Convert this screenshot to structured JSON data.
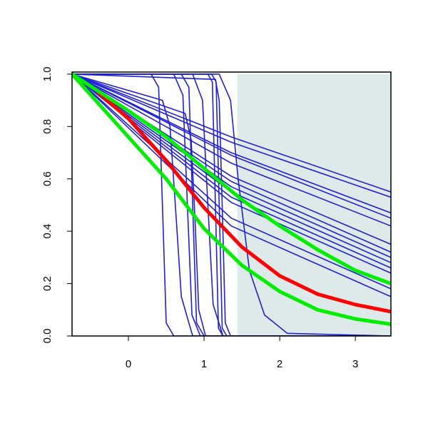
{
  "chart_data": {
    "type": "line",
    "xlim": [
      -0.745,
      3.47
    ],
    "ylim": [
      0,
      1.008
    ],
    "xticks": [
      0,
      1,
      2,
      3
    ],
    "yticks": [
      {
        "value": 0,
        "label": "0.0"
      },
      0.2,
      0.4,
      0.6,
      0.8,
      {
        "value": 1,
        "label": "1.0"
      }
    ],
    "band": {
      "x": [
        1.44,
        3.47
      ],
      "y": [
        0,
        1
      ],
      "color": "#deeaea"
    },
    "series": [
      {
        "color": "#1f1fd8",
        "lwd": 1.6,
        "x": [
          -0.745,
          1.36,
          3.47
        ],
        "values": [
          1,
          0.76,
          0.55
        ]
      },
      {
        "color": "#1f1fd8",
        "lwd": 1.6,
        "x": [
          -0.745,
          1.36,
          3.47
        ],
        "values": [
          1,
          0.74,
          0.53
        ]
      },
      {
        "color": "#1f1fd8",
        "lwd": 1.6,
        "x": [
          -0.745,
          1.36,
          3.47
        ],
        "values": [
          1,
          0.7,
          0.47
        ]
      },
      {
        "color": "#1f1fd8",
        "lwd": 1.6,
        "x": [
          -0.745,
          1.36,
          3.47
        ],
        "values": [
          1,
          0.69,
          0.45
        ]
      },
      {
        "color": "#1f1fd8",
        "lwd": 1.6,
        "x": [
          -0.745,
          1.36,
          3.47
        ],
        "values": [
          1,
          0.66,
          0.42
        ]
      },
      {
        "color": "#1f1fd8",
        "lwd": 1.6,
        "x": [
          -0.745,
          1.36,
          3.47
        ],
        "values": [
          1,
          0.61,
          0.35
        ]
      },
      {
        "color": "#1f1fd8",
        "lwd": 1.6,
        "x": [
          -0.745,
          1.36,
          3.47
        ],
        "values": [
          1,
          0.59,
          0.32
        ]
      },
      {
        "color": "#1f1fd8",
        "lwd": 1.6,
        "x": [
          -0.745,
          1.36,
          3.47
        ],
        "values": [
          1,
          0.57,
          0.3
        ]
      },
      {
        "color": "#1f1fd8",
        "lwd": 1.6,
        "x": [
          -0.745,
          1.36,
          3.47
        ],
        "values": [
          1,
          0.55,
          0.28
        ]
      },
      {
        "color": "#1f1fd8",
        "lwd": 1.6,
        "x": [
          -0.745,
          1.36,
          3.47
        ],
        "values": [
          1,
          0.53,
          0.26
        ]
      },
      {
        "color": "#1f1fd8",
        "lwd": 1.6,
        "x": [
          -0.745,
          1.36,
          3.47
        ],
        "values": [
          1,
          0.51,
          0.24
        ]
      },
      {
        "color": "#1f1fd8",
        "lwd": 1.6,
        "x": [
          -0.745,
          1.36,
          3.47
        ],
        "values": [
          1,
          0.45,
          0.18
        ]
      },
      {
        "color": "#1f1fd8",
        "lwd": 1.6,
        "x": [
          -0.745,
          1.36,
          3.47
        ],
        "values": [
          1,
          0.42,
          0.15
        ]
      },
      {
        "color": "#1f1fd8",
        "lwd": 1.6,
        "x": [
          -0.745,
          0.3,
          0.4,
          0.45,
          0.5,
          0.6,
          3.47
        ],
        "values": [
          1,
          1,
          0.95,
          0.5,
          0.05,
          0,
          0
        ]
      },
      {
        "color": "#1f1fd8",
        "lwd": 1.6,
        "x": [
          -0.745,
          0.45,
          0.55,
          0.62,
          0.7,
          0.85,
          3.47
        ],
        "values": [
          1,
          0.9,
          0.8,
          0.5,
          0.15,
          0,
          0
        ]
      },
      {
        "color": "#1f1fd8",
        "lwd": 1.6,
        "x": [
          -0.745,
          0.6,
          0.72,
          0.78,
          0.84,
          0.95,
          3.47
        ],
        "values": [
          1,
          1,
          0.92,
          0.5,
          0.08,
          0,
          0
        ]
      },
      {
        "color": "#1f1fd8",
        "lwd": 1.6,
        "x": [
          -0.745,
          0.7,
          0.8,
          0.85,
          0.9,
          1.0,
          3.47
        ],
        "values": [
          1,
          1,
          0.95,
          0.5,
          0.05,
          0,
          0
        ]
      },
      {
        "color": "#1f1fd8",
        "lwd": 1.6,
        "x": [
          -0.745,
          0.75,
          0.83,
          0.88,
          0.93,
          1.02,
          3.47
        ],
        "values": [
          1,
          0.85,
          0.75,
          0.45,
          0.1,
          0,
          0
        ]
      },
      {
        "color": "#1f1fd8",
        "lwd": 1.6,
        "x": [
          -0.745,
          0.85,
          0.98,
          1.05,
          1.12,
          1.25,
          3.47
        ],
        "values": [
          1,
          1,
          0.9,
          0.5,
          0.12,
          0,
          0
        ]
      },
      {
        "color": "#1f1fd8",
        "lwd": 1.6,
        "x": [
          -0.745,
          1.05,
          1.11,
          1.15,
          1.19,
          1.25,
          3.47
        ],
        "values": [
          1,
          1,
          0.97,
          0.5,
          0.03,
          0,
          0
        ]
      },
      {
        "color": "#1f1fd8",
        "lwd": 1.6,
        "x": [
          -0.745,
          1.1,
          1.16,
          1.2,
          1.24,
          1.3,
          3.47
        ],
        "values": [
          1,
          1,
          0.97,
          0.5,
          0.03,
          0,
          0
        ]
      },
      {
        "color": "#1f1fd8",
        "lwd": 1.6,
        "x": [
          -0.745,
          1.15,
          1.2,
          1.24,
          1.28,
          1.35,
          3.47
        ],
        "values": [
          1,
          0.98,
          0.9,
          0.5,
          0.05,
          0,
          0
        ]
      },
      {
        "color": "#1f1fd8",
        "lwd": 1.6,
        "x": [
          -0.745,
          1.2,
          1.35,
          1.45,
          1.6,
          1.8,
          2.1,
          3.47
        ],
        "values": [
          1,
          1,
          0.9,
          0.6,
          0.25,
          0.08,
          0.01,
          0
        ]
      },
      {
        "color": "#ff0000",
        "lwd": 5,
        "x": [
          -0.4,
          0,
          0.5,
          1,
          1.5,
          2,
          2.5,
          3,
          3.47
        ],
        "values": [
          0.93,
          0.83,
          0.67,
          0.49,
          0.34,
          0.23,
          0.16,
          0.12,
          0.093
        ]
      },
      {
        "color": "#00ee00",
        "lwd": 5,
        "x": [
          -0.745,
          0,
          0.5,
          1,
          1.5,
          2,
          2.5,
          3,
          3.47
        ],
        "values": [
          1,
          0.76,
          0.6,
          0.41,
          0.27,
          0.17,
          0.1,
          0.065,
          0.045
        ]
      },
      {
        "color": "#00ee00",
        "lwd": 5,
        "x": [
          -0.745,
          0,
          0.5,
          1,
          1.5,
          2,
          2.5,
          3,
          3.47
        ],
        "values": [
          1,
          0.86,
          0.76,
          0.64,
          0.52,
          0.42,
          0.33,
          0.25,
          0.2
        ]
      }
    ]
  }
}
